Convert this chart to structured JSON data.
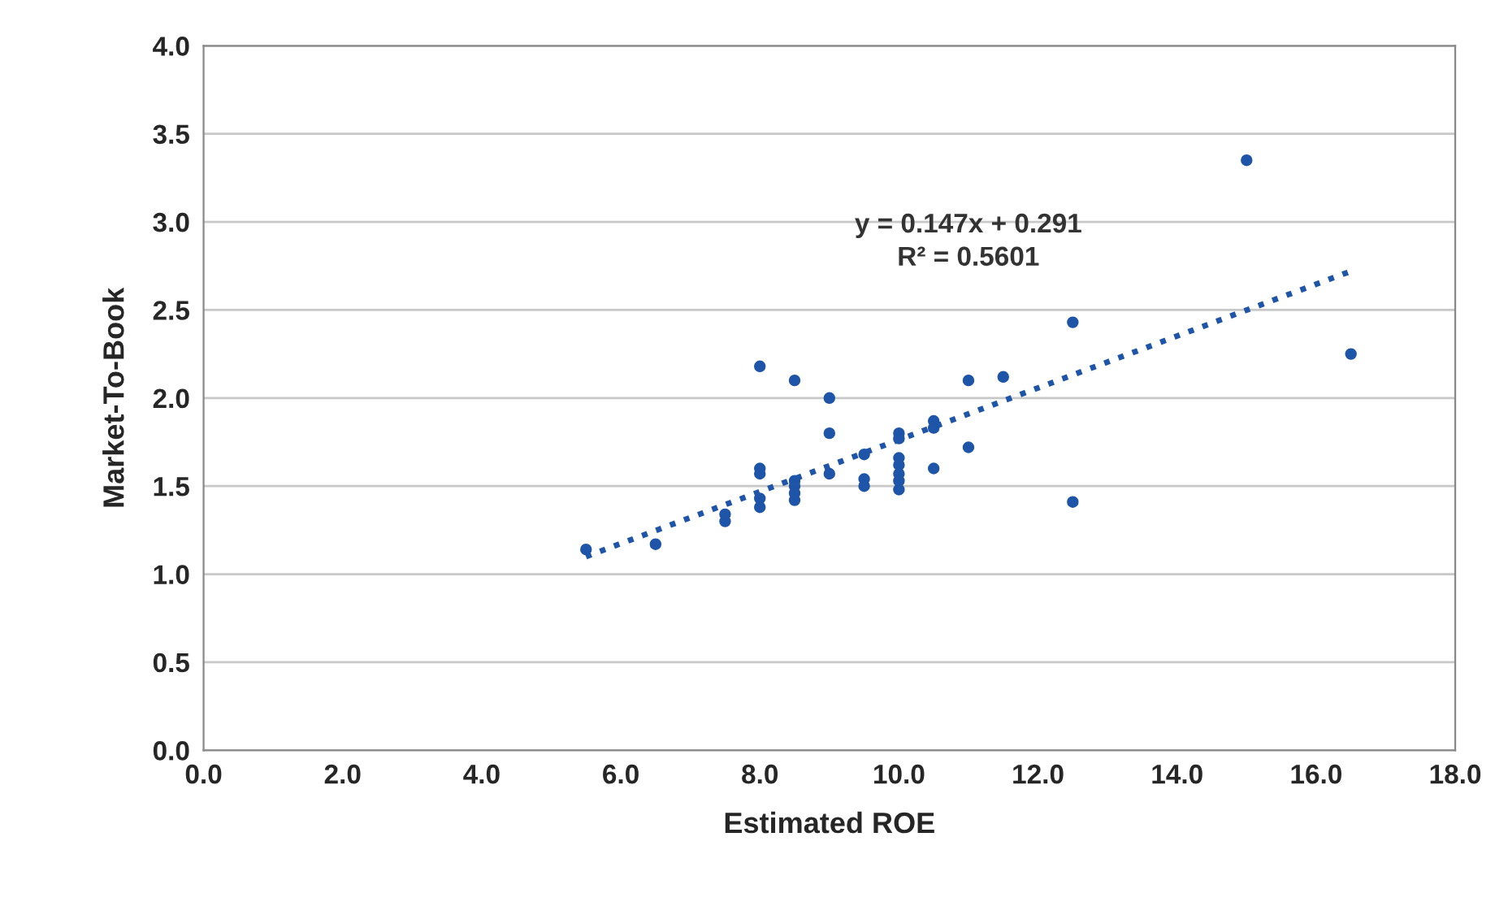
{
  "chart_data": {
    "type": "scatter",
    "xlabel": "Estimated ROE",
    "ylabel": "Market-To-Book",
    "xlim": [
      0,
      18
    ],
    "xticks": [
      {
        "value": 0,
        "label": "0.0"
      },
      {
        "value": 2,
        "label": "2.0"
      },
      {
        "value": 4,
        "label": "4.0"
      },
      {
        "value": 6,
        "label": "6.0"
      },
      {
        "value": 8,
        "label": "8.0"
      },
      {
        "value": 10,
        "label": "10.0"
      },
      {
        "value": 12,
        "label": "12.0"
      },
      {
        "value": 14,
        "label": "14.0"
      },
      {
        "value": 16,
        "label": "16.0"
      },
      {
        "value": 18,
        "label": "18.0"
      }
    ],
    "ylim": [
      0,
      4
    ],
    "yticks": [
      {
        "value": 0,
        "label": "0.0"
      },
      {
        "value": 0.5,
        "label": "0.5"
      },
      {
        "value": 1,
        "label": "1.0"
      },
      {
        "value": 1.5,
        "label": "1.5"
      },
      {
        "value": 2,
        "label": "2.0"
      },
      {
        "value": 2.5,
        "label": "2.5"
      },
      {
        "value": 3,
        "label": "3.0"
      },
      {
        "value": 3.5,
        "label": "3.5"
      },
      {
        "value": 4,
        "label": "4.0"
      }
    ],
    "grid": "y",
    "marker": "circle",
    "series": [
      {
        "color": "#1f55a8",
        "x": [
          5.5,
          6.5,
          7.5,
          7.5,
          8.0,
          8.0,
          8.0,
          8.0,
          8.0,
          8.5,
          8.5,
          8.5,
          8.5,
          8.5,
          9.0,
          9.0,
          9.0,
          9.5,
          9.5,
          9.5,
          10.0,
          10.0,
          10.0,
          10.0,
          10.0,
          10.0,
          10.0,
          10.5,
          10.5,
          10.5,
          11.0,
          11.0,
          11.5,
          12.5,
          12.5,
          15.0,
          16.5
        ],
        "values": [
          1.14,
          1.17,
          1.3,
          1.34,
          2.18,
          1.6,
          1.57,
          1.43,
          1.38,
          2.1,
          1.53,
          1.5,
          1.46,
          1.42,
          2.0,
          1.8,
          1.57,
          1.68,
          1.54,
          1.5,
          1.8,
          1.77,
          1.66,
          1.62,
          1.57,
          1.53,
          1.48,
          1.87,
          1.83,
          1.6,
          2.1,
          1.72,
          2.12,
          2.43,
          1.41,
          3.35,
          2.25
        ]
      },
      {
        "type": "line",
        "color": "#1f55a8",
        "line_style": "dotted",
        "marker": "none",
        "x": [
          5.5,
          16.5
        ],
        "values": [
          1.1,
          2.72
        ]
      }
    ],
    "annotations": [
      "y = 0.147x + 0.291\nR² = 0.5601"
    ]
  }
}
